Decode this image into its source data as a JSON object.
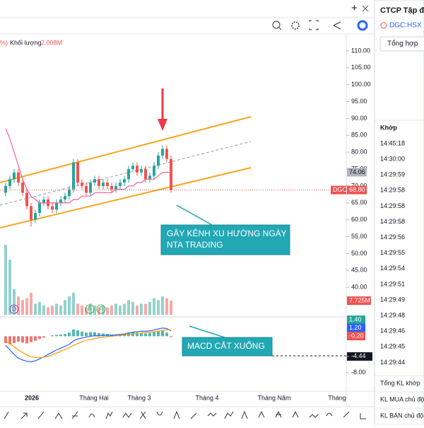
{
  "legend": {
    "prefix": "%)",
    "volume_label": "Khối lượng",
    "volume_value": "2.008M"
  },
  "chart_data": {
    "type": "candlestick",
    "open": [
      68,
      70,
      72,
      74,
      71,
      68,
      64,
      60,
      62,
      65,
      66,
      64,
      63,
      65,
      66,
      67,
      69,
      77,
      71,
      70,
      68,
      71,
      72,
      70,
      71,
      70,
      69,
      70,
      71,
      72,
      75,
      76,
      74,
      75,
      72,
      73,
      76,
      79,
      81,
      78
    ],
    "high": [
      71,
      73,
      75,
      75,
      72,
      69,
      65,
      63,
      66,
      67,
      67,
      65,
      66,
      67,
      68,
      70,
      78,
      78,
      72,
      71,
      72,
      73,
      73,
      72,
      72,
      71,
      71,
      72,
      73,
      76,
      77,
      77,
      76,
      76,
      74,
      77,
      80,
      82,
      82,
      79
    ],
    "low": [
      67,
      69,
      71,
      70,
      67,
      63,
      58,
      59,
      61,
      64,
      63,
      62,
      62,
      64,
      65,
      66,
      68,
      70,
      69,
      67,
      67,
      70,
      69,
      69,
      69,
      68,
      68,
      69,
      70,
      71,
      74,
      73,
      73,
      71,
      71,
      72,
      75,
      78,
      77,
      68
    ],
    "close": [
      70,
      72,
      74,
      71,
      68,
      64,
      60,
      62,
      65,
      66,
      64,
      63,
      65,
      66,
      67,
      69,
      77,
      71,
      70,
      68,
      71,
      72,
      70,
      71,
      70,
      69,
      70,
      71,
      72,
      75,
      76,
      74,
      75,
      72,
      73,
      76,
      79,
      81,
      78,
      68.8
    ],
    "up_color": "#26a69a",
    "down_color": "#ef5350",
    "ma": {
      "color": "#f06292",
      "values": [
        87,
        84,
        80,
        76,
        72,
        69,
        67,
        66,
        65,
        65,
        65,
        65,
        65,
        65,
        65,
        65,
        66,
        66,
        67,
        67,
        67,
        68,
        68,
        68,
        68,
        68,
        69,
        69,
        69,
        70,
        70,
        71,
        71,
        72,
        72,
        72,
        73,
        74,
        74,
        74.06
      ]
    },
    "ylim": [
      35,
      115
    ],
    "yticks": [
      {
        "value": 110,
        "label": "110.00"
      },
      {
        "value": 105,
        "label": "105.00"
      },
      {
        "value": 100,
        "label": "100.00"
      },
      {
        "value": 95,
        "label": "95.00"
      },
      {
        "value": 90,
        "label": "90.00"
      },
      {
        "value": 85,
        "label": "85.00"
      },
      {
        "value": 80,
        "label": "80.00"
      },
      {
        "value": 75,
        "label": "75.00"
      },
      {
        "value": 70,
        "label": "70.00"
      },
      {
        "value": 65,
        "label": "65.00"
      },
      {
        "value": 60,
        "label": "60.00"
      },
      {
        "value": 55,
        "label": "55.00"
      },
      {
        "value": 50,
        "label": "50.00"
      },
      {
        "value": 45,
        "label": "45.00"
      },
      {
        "value": 40,
        "label": "40.00"
      }
    ],
    "volume": {
      "ylim": [
        0,
        40
      ],
      "values": [
        38,
        30,
        14,
        10,
        8,
        9,
        12,
        6,
        7,
        5,
        4,
        5,
        6,
        5,
        8,
        10,
        12,
        6,
        5,
        4,
        6,
        5,
        4,
        5,
        4,
        5,
        6,
        5,
        6,
        8,
        7,
        5,
        6,
        6,
        7,
        9,
        8,
        10,
        9,
        7.725
      ]
    },
    "macd": {
      "ylim": [
        -8.5,
        3
      ],
      "yticks": [
        {
          "value": -4.44,
          "label": "-4.44"
        },
        {
          "value": -8,
          "label": "-8.00"
        }
      ],
      "histogram": [
        -1.5,
        -1.8,
        -1.5,
        -1.2,
        -1.4,
        -1.6,
        -1.3,
        -1,
        -0.6,
        -0.3,
        0,
        0.2,
        0.3,
        0.4,
        0.5,
        0.8,
        1.5,
        1.3,
        1,
        0.8,
        0.9,
        0.9,
        0.7,
        0.6,
        0.5,
        0.4,
        0.4,
        0.5,
        0.6,
        0.8,
        0.9,
        0.8,
        0.7,
        0.6,
        0.7,
        0.9,
        1.1,
        1.2,
        0.8,
        -0.2
      ],
      "macd_line": {
        "color": "#2962ff",
        "values": [
          -2,
          -3,
          -4,
          -4.8,
          -5.2,
          -5.5,
          -5.6,
          -5.4,
          -5,
          -4.5,
          -4,
          -3.5,
          -3,
          -2.6,
          -2.2,
          -1.8,
          -1,
          -0.6,
          -0.4,
          -0.2,
          0,
          0.1,
          0.1,
          0.2,
          0.2,
          0.2,
          0.3,
          0.4,
          0.5,
          0.7,
          0.9,
          1,
          1.1,
          1.1,
          1.2,
          1.4,
          1.6,
          1.8,
          1.7,
          1.2
        ]
      },
      "signal_line": {
        "color": "#ff9800",
        "values": [
          -1,
          -1.6,
          -2.3,
          -3,
          -3.6,
          -4.1,
          -4.5,
          -4.7,
          -4.7,
          -4.6,
          -4.4,
          -4.1,
          -3.7,
          -3.3,
          -2.9,
          -2.5,
          -2,
          -1.6,
          -1.2,
          -0.9,
          -0.7,
          -0.5,
          -0.3,
          -0.2,
          -0.1,
          0,
          0.1,
          0.2,
          0.3,
          0.4,
          0.5,
          0.6,
          0.7,
          0.8,
          0.9,
          1,
          1.1,
          1.3,
          1.4,
          1.4
        ]
      }
    }
  },
  "price_badges": {
    "ma": "74.06",
    "symbol": "DGC",
    "last": "68.80"
  },
  "macd_badges": [
    "1.40",
    "1.20",
    "-0.20"
  ],
  "volume_badge": "7.725M",
  "event_markers": [
    "D",
    "F",
    "F"
  ],
  "annotations": {
    "channel": [
      "GÂY KÊNH XU HƯỚNG NGÀY",
      "NTA TRADING"
    ],
    "macd": "MACD CẮT XUỐNG"
  },
  "time_labels": [
    "2026",
    "Tháng Hai",
    "Tháng 3",
    "Tháng 4",
    "Tháng Năm",
    "Tháng"
  ],
  "side_panel": {
    "title": "CTCP Tập đ",
    "symbol": "DGC:HSX",
    "tab": "Tổng hợp",
    "trades_header": "Khớp",
    "times": [
      "14:45:18",
      "14:30:00",
      "14:29:59",
      "14:29:58",
      "14:29:58",
      "14:29:58",
      "14:29:56",
      "14:29:55",
      "14:29:54",
      "14:29:51",
      "14:29:49",
      "14:29:48",
      "14:29:46",
      "14:29:45",
      "14:29:44"
    ],
    "summary": [
      "Tổng KL khớp",
      "KL MUA chủ độ",
      "KL BÁN chủ độ"
    ]
  }
}
